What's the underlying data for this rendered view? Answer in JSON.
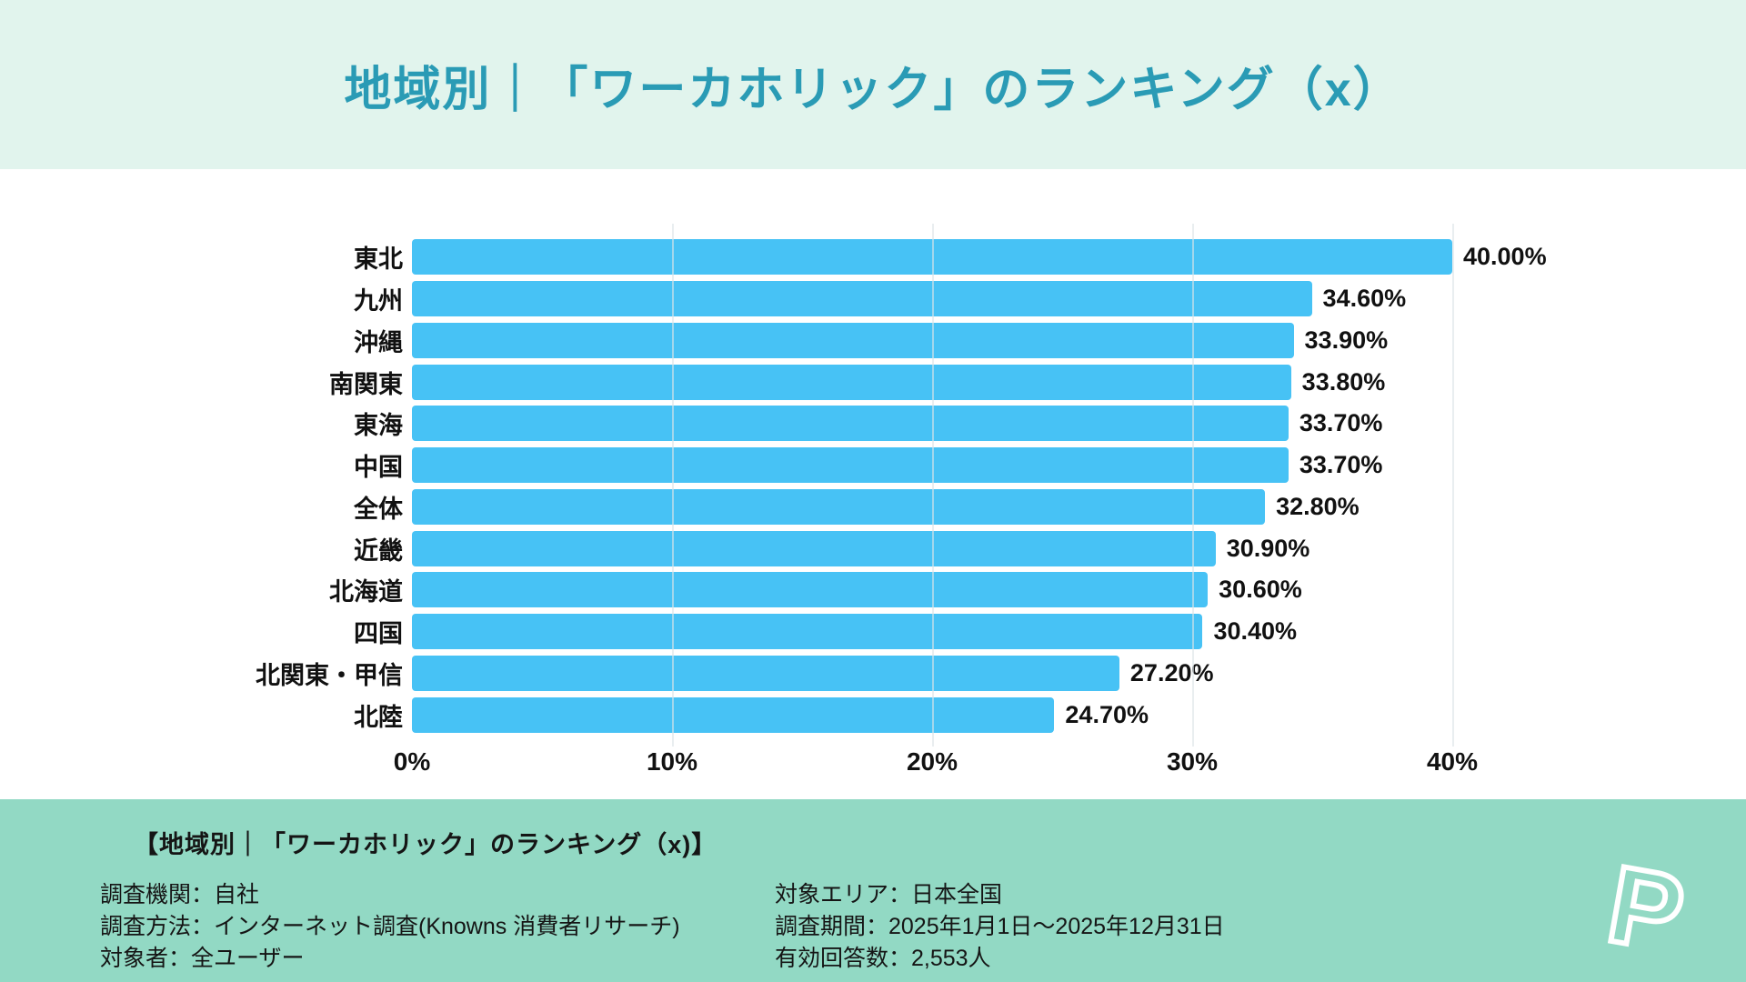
{
  "header": {
    "title": "地域別｜「ワーカホリック」のランキング（x）"
  },
  "chart_data": {
    "type": "bar",
    "orientation": "horizontal",
    "title": "地域別｜「ワーカホリック」のランキング（x）",
    "categories": [
      "東北",
      "九州",
      "沖縄",
      "南関東",
      "東海",
      "中国",
      "全体",
      "近畿",
      "北海道",
      "四国",
      "北関東・甲信",
      "北陸"
    ],
    "values": [
      40.0,
      34.6,
      33.9,
      33.8,
      33.7,
      33.7,
      32.8,
      30.9,
      30.6,
      30.4,
      27.2,
      24.7
    ],
    "value_labels": [
      "40.00%",
      "34.60%",
      "33.90%",
      "33.80%",
      "33.70%",
      "33.70%",
      "32.80%",
      "30.90%",
      "30.60%",
      "30.40%",
      "27.20%",
      "24.70%"
    ],
    "xlim": [
      0,
      40
    ],
    "x_ticks": [
      0,
      10,
      20,
      30,
      40
    ],
    "x_tick_labels": [
      "0%",
      "10%",
      "20%",
      "30%",
      "40%"
    ],
    "grid": "vertical-light",
    "legend": "none",
    "bar_color": "#47c2f5"
  },
  "footer": {
    "title": "【地域別｜「ワーカホリック」のランキング（x)】",
    "left_details": [
      "調査機関：自社",
      "調査方法：インターネット調査(Knowns 消費者リサーチ)",
      "対象者：全ユーザー"
    ],
    "right_details": [
      "対象エリア：日本全国",
      "調査期間：2025年1月1日〜2025年12月31日",
      "有効回答数：2,553人"
    ],
    "logo_letter": "P"
  },
  "colors": {
    "header_bg": "#e1f4ed",
    "title_text": "#2a9bb5",
    "bar": "#47c2f5",
    "footer_bg": "#92d9c4",
    "label_text": "#111111"
  }
}
